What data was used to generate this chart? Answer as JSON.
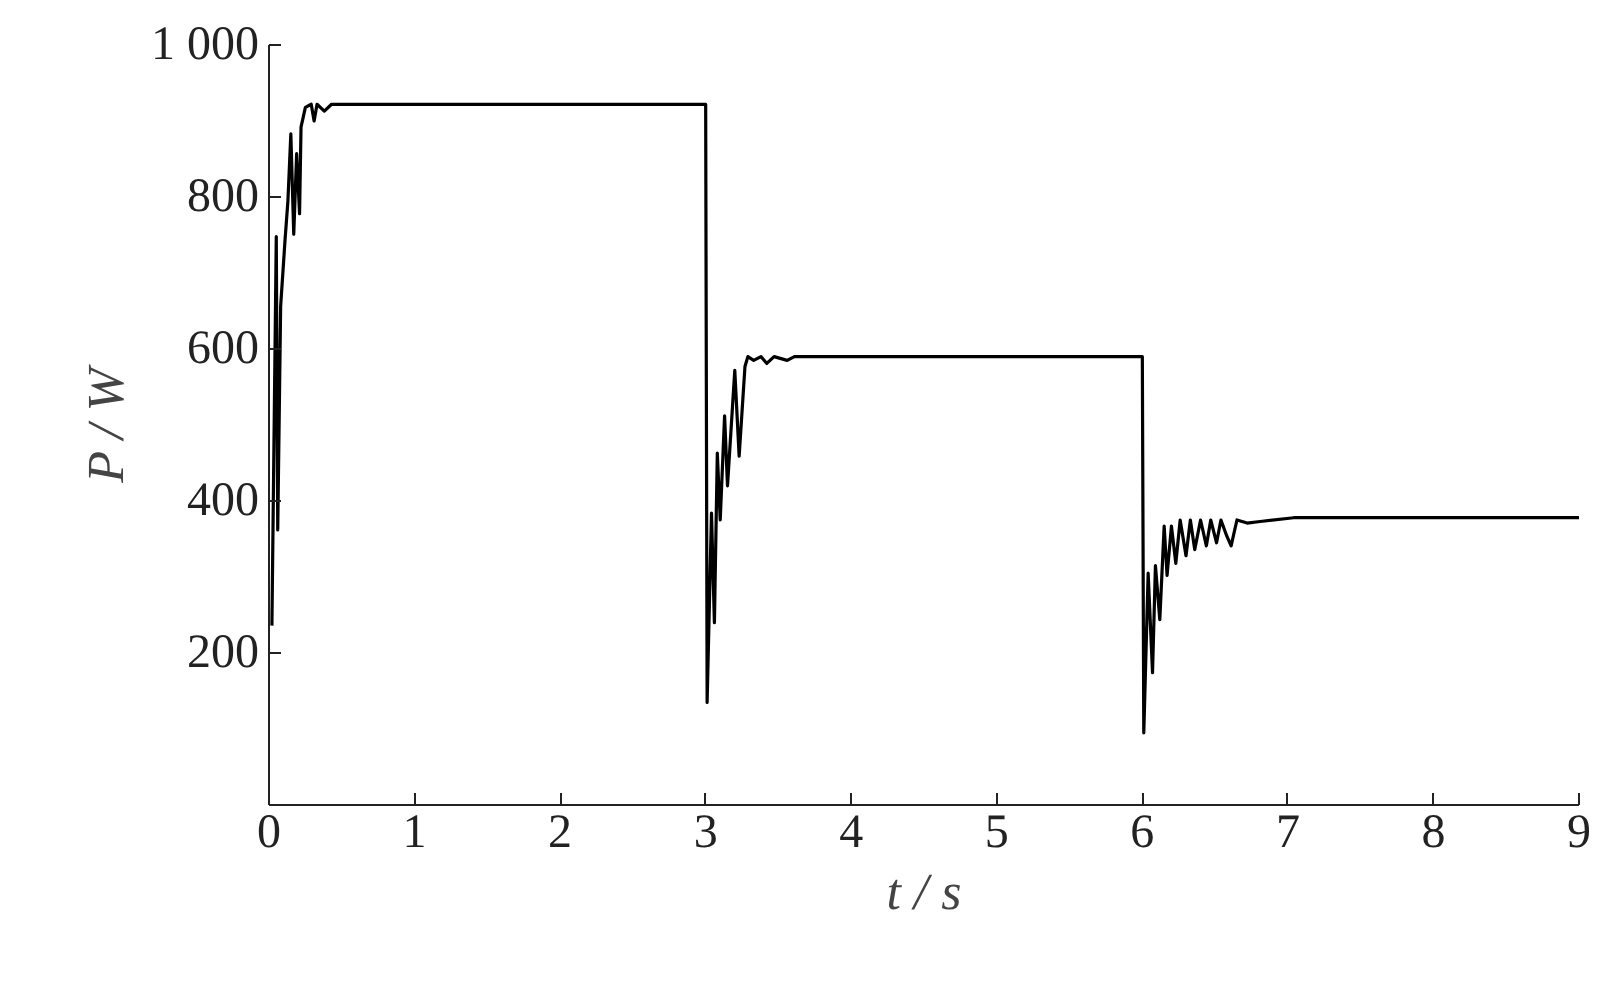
{
  "chart_data": {
    "type": "line",
    "xlabel": "t / s",
    "ylabel": "P / W",
    "xlim": [
      0,
      9
    ],
    "ylim": [
      0,
      1000
    ],
    "xticks": [
      0,
      1,
      2,
      3,
      4,
      5,
      6,
      7,
      8,
      9
    ],
    "yticks": [
      200,
      400,
      600,
      800,
      {
        "value": 1000,
        "label": "1 000"
      }
    ],
    "line_style": "solid",
    "series": [
      {
        "color": "#000000",
        "x": [
          0.02,
          0.05,
          0.06,
          0.08,
          0.11,
          0.13,
          0.15,
          0.17,
          0.19,
          0.21,
          0.22,
          0.25,
          0.29,
          0.31,
          0.33,
          0.38,
          0.43,
          0.56,
          3.0,
          3.01,
          3.04,
          3.06,
          3.08,
          3.1,
          3.13,
          3.15,
          3.2,
          3.23,
          3.27,
          3.29,
          3.33,
          3.38,
          3.42,
          3.47,
          3.56,
          3.61,
          6.0,
          6.01,
          6.04,
          6.07,
          6.09,
          6.12,
          6.15,
          6.17,
          6.2,
          6.23,
          6.26,
          6.3,
          6.33,
          6.36,
          6.4,
          6.44,
          6.47,
          6.51,
          6.54,
          6.58,
          6.61,
          6.65,
          6.72,
          6.81,
          7.04,
          9.0
        ],
        "values": [
          236,
          748,
          362,
          656,
          743,
          795,
          883,
          751,
          857,
          778,
          892,
          918,
          922,
          900,
          922,
          913,
          922,
          922,
          922,
          135,
          384,
          240,
          463,
          375,
          512,
          420,
          572,
          459,
          577,
          590,
          585,
          590,
          581,
          590,
          585,
          590,
          590,
          95,
          305,
          174,
          315,
          244,
          367,
          302,
          367,
          318,
          375,
          328,
          375,
          336,
          375,
          341,
          375,
          345,
          375,
          354,
          341,
          375,
          371,
          373,
          378,
          378
        ]
      }
    ]
  }
}
